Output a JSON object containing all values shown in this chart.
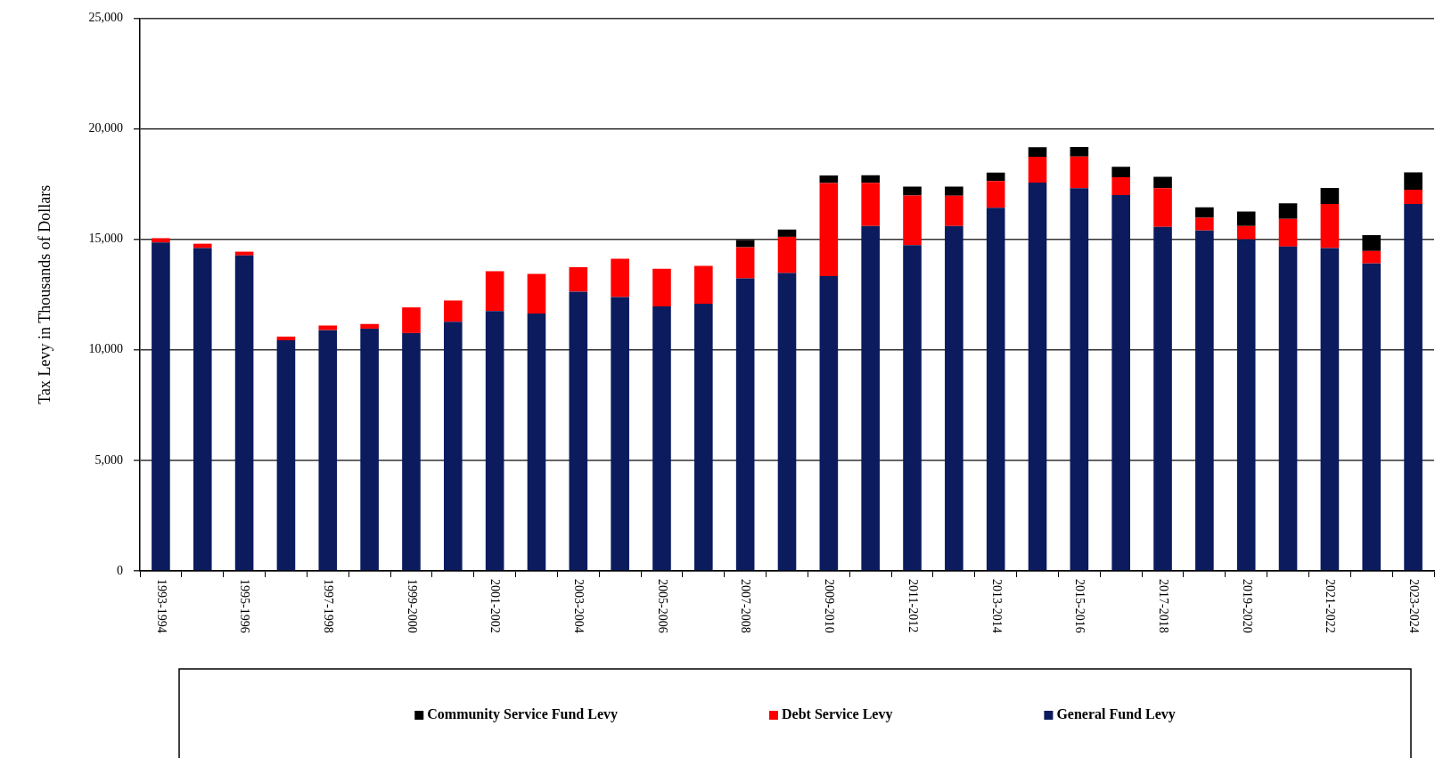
{
  "chart_data": {
    "type": "bar",
    "stacked": true,
    "grid": "y",
    "legend": "bottom",
    "ylabel": "Tax Levy in Thousands of Dollars",
    "categories": [
      "1993-1994",
      null,
      "1995-1996",
      null,
      "1997-1998",
      null,
      "1999-2000",
      null,
      "2001-2002",
      null,
      "2003-2004",
      null,
      "2005-2006",
      null,
      "2007-2008",
      null,
      "2009-2010",
      null,
      "2011-2012",
      null,
      "2013-2014",
      null,
      "2015-2016",
      null,
      "2017-2018",
      null,
      "2019-2020",
      null,
      "2021-2022",
      null,
      "2023-2024"
    ],
    "ylim": [
      0,
      25000
    ],
    "yticks": [
      {
        "value": 0,
        "label": "0"
      },
      {
        "value": 5000,
        "label": "5,000"
      },
      {
        "value": 10000,
        "label": "10,000"
      },
      {
        "value": 15000,
        "label": "15,000"
      },
      {
        "value": 20000,
        "label": "20,000"
      },
      {
        "value": 25000,
        "label": "25,000"
      }
    ],
    "series": [
      {
        "name": "General Fund Levy",
        "color": "#0b1b5e",
        "values": [
          14850,
          14600,
          14270,
          10430,
          10890,
          10960,
          10760,
          11270,
          11750,
          11640,
          12630,
          12390,
          11960,
          12090,
          13230,
          13470,
          13330,
          15600,
          14730,
          15600,
          16430,
          17560,
          17310,
          17000,
          15560,
          15400,
          15000,
          14670,
          14600,
          13910,
          16600
        ]
      },
      {
        "name": "Debt Service Levy",
        "color": "#ff0000",
        "values": [
          200,
          200,
          170,
          170,
          210,
          210,
          1160,
          960,
          1810,
          1790,
          1110,
          1730,
          1710,
          1710,
          1410,
          1640,
          4210,
          1950,
          2250,
          1370,
          1200,
          1170,
          1430,
          810,
          1750,
          570,
          600,
          1250,
          2000,
          560,
          640
        ]
      },
      {
        "name": "Community Service Fund Levy",
        "color": "#000000",
        "values": [
          null,
          null,
          null,
          null,
          null,
          null,
          null,
          null,
          null,
          null,
          null,
          null,
          null,
          null,
          330,
          330,
          350,
          350,
          400,
          410,
          390,
          430,
          430,
          470,
          520,
          480,
          650,
          710,
          720,
          720,
          790
        ]
      }
    ]
  }
}
